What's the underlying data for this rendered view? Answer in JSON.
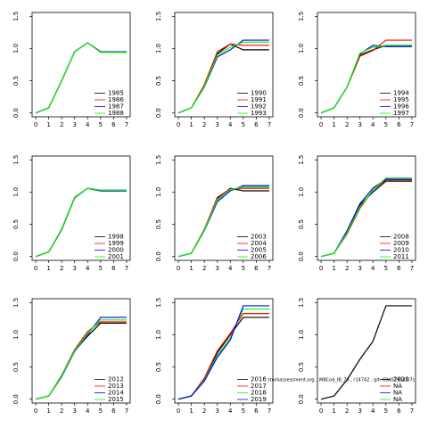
{
  "chart_data": [
    {
      "type": "line",
      "x": [
        0,
        1,
        2,
        3,
        4,
        5,
        6,
        7
      ],
      "xlim": [
        -0.28,
        7.28
      ],
      "xticks": [
        0,
        1,
        2,
        3,
        4,
        5,
        6,
        7
      ],
      "ylim": [
        -0.06,
        1.56
      ],
      "yticks": [
        {
          "value": 0,
          "label": "0.0"
        },
        {
          "value": 0.5,
          "label": "0.5"
        },
        {
          "value": 1,
          "label": "1.0"
        },
        {
          "value": 1.5,
          "label": "1.5"
        }
      ],
      "legend": "bottom-right",
      "series": [
        {
          "name": "1985",
          "color": "#000000",
          "values": [
            0,
            0.08,
            0.5,
            0.95,
            1.09,
            0.95,
            0.95,
            0.95
          ]
        },
        {
          "name": "1986",
          "color": "#ff0000",
          "values": [
            0,
            0.08,
            0.5,
            0.95,
            1.09,
            0.95,
            0.95,
            0.95
          ]
        },
        {
          "name": "1987",
          "color": "#0000ff",
          "values": [
            0,
            0.08,
            0.5,
            0.95,
            1.09,
            0.95,
            0.95,
            0.95
          ]
        },
        {
          "name": "1988",
          "color": "#00ff00",
          "values": [
            0,
            0.08,
            0.5,
            0.95,
            1.09,
            0.94,
            0.94,
            0.94
          ]
        }
      ]
    },
    {
      "type": "line",
      "x": [
        0,
        1,
        2,
        3,
        4,
        5,
        6,
        7
      ],
      "xlim": [
        -0.28,
        7.28
      ],
      "xticks": [
        0,
        1,
        2,
        3,
        4,
        5,
        6,
        7
      ],
      "ylim": [
        -0.06,
        1.56
      ],
      "yticks": [
        {
          "value": 0,
          "label": "0.0"
        },
        {
          "value": 0.5,
          "label": "0.5"
        },
        {
          "value": 1,
          "label": "1.0"
        },
        {
          "value": 1.5,
          "label": "1.5"
        }
      ],
      "legend": "bottom-right",
      "series": [
        {
          "name": "1990",
          "color": "#000000",
          "values": [
            0,
            0.08,
            0.42,
            0.92,
            1.07,
            0.98,
            0.98,
            0.98
          ]
        },
        {
          "name": "1991",
          "color": "#ff0000",
          "values": [
            0,
            0.08,
            0.44,
            0.95,
            1.07,
            1.05,
            1.05,
            1.05
          ]
        },
        {
          "name": "1992",
          "color": "#0000ff",
          "values": [
            0,
            0.08,
            0.4,
            0.87,
            0.98,
            1.13,
            1.13,
            1.13
          ]
        },
        {
          "name": "1993",
          "color": "#00ff00",
          "values": [
            0,
            0.08,
            0.41,
            0.9,
            1.02,
            1.1,
            1.1,
            1.1
          ]
        }
      ]
    },
    {
      "type": "line",
      "x": [
        0,
        1,
        2,
        3,
        4,
        5,
        6,
        7
      ],
      "xlim": [
        -0.28,
        7.28
      ],
      "xticks": [
        0,
        1,
        2,
        3,
        4,
        5,
        6,
        7
      ],
      "ylim": [
        -0.06,
        1.56
      ],
      "yticks": [
        {
          "value": 0,
          "label": "0.0"
        },
        {
          "value": 0.5,
          "label": "0.5"
        },
        {
          "value": 1,
          "label": "1.0"
        },
        {
          "value": 1.5,
          "label": "1.5"
        }
      ],
      "legend": "bottom-right",
      "series": [
        {
          "name": "1994",
          "color": "#000000",
          "values": [
            0,
            0.08,
            0.4,
            0.9,
            0.98,
            1.05,
            1.05,
            1.05
          ]
        },
        {
          "name": "1995",
          "color": "#ff0000",
          "values": [
            0,
            0.08,
            0.4,
            0.88,
            0.97,
            1.13,
            1.13,
            1.13
          ]
        },
        {
          "name": "1996",
          "color": "#0000ff",
          "values": [
            0,
            0.08,
            0.4,
            0.92,
            1.05,
            1.03,
            1.03,
            1.03
          ]
        },
        {
          "name": "1997",
          "color": "#00ff00",
          "values": [
            0,
            0.08,
            0.4,
            0.93,
            1.02,
            1.05,
            1.05,
            1.05
          ]
        }
      ]
    },
    {
      "type": "line",
      "x": [
        0,
        1,
        2,
        3,
        4,
        5,
        6,
        7
      ],
      "xlim": [
        -0.28,
        7.28
      ],
      "xticks": [
        0,
        1,
        2,
        3,
        4,
        5,
        6,
        7
      ],
      "ylim": [
        -0.06,
        1.56
      ],
      "yticks": [
        {
          "value": 0,
          "label": "0.0"
        },
        {
          "value": 0.5,
          "label": "0.5"
        },
        {
          "value": 1,
          "label": "1.0"
        },
        {
          "value": 1.5,
          "label": "1.5"
        }
      ],
      "legend": "bottom-right",
      "series": [
        {
          "name": "1998",
          "color": "#000000",
          "values": [
            0,
            0.07,
            0.42,
            0.92,
            1.06,
            1.02,
            1.02,
            1.02
          ]
        },
        {
          "name": "1999",
          "color": "#ff0000",
          "values": [
            0,
            0.07,
            0.42,
            0.92,
            1.06,
            1.03,
            1.03,
            1.03
          ]
        },
        {
          "name": "2000",
          "color": "#0000ff",
          "values": [
            0,
            0.07,
            0.42,
            0.91,
            1.06,
            1.02,
            1.02,
            1.02
          ]
        },
        {
          "name": "2001",
          "color": "#00ff00",
          "values": [
            0,
            0.07,
            0.43,
            0.92,
            1.06,
            1.03,
            1.03,
            1.03
          ]
        }
      ]
    },
    {
      "type": "line",
      "x": [
        0,
        1,
        2,
        3,
        4,
        5,
        6,
        7
      ],
      "xlim": [
        -0.28,
        7.28
      ],
      "xticks": [
        0,
        1,
        2,
        3,
        4,
        5,
        6,
        7
      ],
      "ylim": [
        -0.06,
        1.56
      ],
      "yticks": [
        {
          "value": 0,
          "label": "0.0"
        },
        {
          "value": 0.5,
          "label": "0.5"
        },
        {
          "value": 1,
          "label": "1.0"
        },
        {
          "value": 1.5,
          "label": "1.5"
        }
      ],
      "legend": "bottom-right",
      "series": [
        {
          "name": "2003",
          "color": "#000000",
          "values": [
            0,
            0.05,
            0.42,
            0.9,
            1.06,
            1.02,
            1.02,
            1.02
          ]
        },
        {
          "name": "2004",
          "color": "#ff0000",
          "values": [
            0,
            0.05,
            0.42,
            0.92,
            1.05,
            1.06,
            1.06,
            1.06
          ]
        },
        {
          "name": "2005",
          "color": "#0000ff",
          "values": [
            0,
            0.05,
            0.4,
            0.85,
            1.02,
            1.1,
            1.1,
            1.1
          ]
        },
        {
          "name": "2006",
          "color": "#00ff00",
          "values": [
            0,
            0.05,
            0.41,
            0.88,
            1.04,
            1.08,
            1.08,
            1.08
          ]
        }
      ]
    },
    {
      "type": "line",
      "x": [
        0,
        1,
        2,
        3,
        4,
        5,
        6,
        7
      ],
      "xlim": [
        -0.28,
        7.28
      ],
      "xticks": [
        0,
        1,
        2,
        3,
        4,
        5,
        6,
        7
      ],
      "ylim": [
        -0.06,
        1.56
      ],
      "yticks": [
        {
          "value": 0,
          "label": "0.0"
        },
        {
          "value": 0.5,
          "label": "0.5"
        },
        {
          "value": 1,
          "label": "1.0"
        },
        {
          "value": 1.5,
          "label": "1.5"
        }
      ],
      "legend": "bottom-right",
      "series": [
        {
          "name": "2008",
          "color": "#000000",
          "values": [
            0,
            0.05,
            0.38,
            0.8,
            1.0,
            1.17,
            1.17,
            1.17
          ]
        },
        {
          "name": "2009",
          "color": "#ff0000",
          "values": [
            0,
            0.05,
            0.35,
            0.75,
            1.03,
            1.19,
            1.19,
            1.19
          ]
        },
        {
          "name": "2010",
          "color": "#0000ff",
          "values": [
            0,
            0.05,
            0.4,
            0.82,
            1.06,
            1.2,
            1.2,
            1.2
          ]
        },
        {
          "name": "2011",
          "color": "#00ff00",
          "values": [
            0,
            0.05,
            0.37,
            0.77,
            1.03,
            1.22,
            1.22,
            1.22
          ]
        }
      ]
    },
    {
      "type": "line",
      "x": [
        0,
        1,
        2,
        3,
        4,
        5,
        6,
        7
      ],
      "xlim": [
        -0.28,
        7.28
      ],
      "xticks": [
        0,
        1,
        2,
        3,
        4,
        5,
        6,
        7
      ],
      "ylim": [
        -0.06,
        1.56
      ],
      "yticks": [
        {
          "value": 0,
          "label": "0.0"
        },
        {
          "value": 0.5,
          "label": "0.5"
        },
        {
          "value": 1,
          "label": "1.0"
        },
        {
          "value": 1.5,
          "label": "1.5"
        }
      ],
      "legend": "bottom-right",
      "series": [
        {
          "name": "2012",
          "color": "#000000",
          "values": [
            0,
            0.05,
            0.35,
            0.75,
            0.98,
            1.18,
            1.18,
            1.18
          ]
        },
        {
          "name": "2013",
          "color": "#ff0000",
          "values": [
            0,
            0.05,
            0.37,
            0.77,
            1.05,
            1.2,
            1.2,
            1.2
          ]
        },
        {
          "name": "2014",
          "color": "#0000ff",
          "values": [
            0,
            0.05,
            0.35,
            0.74,
            1.0,
            1.27,
            1.27,
            1.27
          ]
        },
        {
          "name": "2015",
          "color": "#00ff00",
          "values": [
            0,
            0.05,
            0.36,
            0.75,
            1.02,
            1.23,
            1.23,
            1.23
          ]
        }
      ]
    },
    {
      "type": "line",
      "x": [
        0,
        1,
        2,
        3,
        4,
        5,
        6,
        7
      ],
      "xlim": [
        -0.28,
        7.28
      ],
      "xticks": [
        0,
        1,
        2,
        3,
        4,
        5,
        6,
        7
      ],
      "ylim": [
        -0.06,
        1.56
      ],
      "yticks": [
        {
          "value": 0,
          "label": "0.0"
        },
        {
          "value": 0.5,
          "label": "0.5"
        },
        {
          "value": 1,
          "label": "1.0"
        },
        {
          "value": 1.5,
          "label": "1.5"
        }
      ],
      "legend": "bottom-right",
      "series": [
        {
          "name": "2016",
          "color": "#000000",
          "values": [
            0,
            0.05,
            0.32,
            0.72,
            1.0,
            1.27,
            1.27,
            1.27
          ]
        },
        {
          "name": "2017",
          "color": "#ff0000",
          "values": [
            0,
            0.05,
            0.33,
            0.75,
            1.02,
            1.33,
            1.33,
            1.33
          ]
        },
        {
          "name": "2018",
          "color": "#00ff00",
          "values": [
            0,
            0.05,
            0.3,
            0.68,
            0.95,
            1.4,
            1.4,
            1.4
          ]
        },
        {
          "name": "2019",
          "color": "#0000ff",
          "values": [
            0,
            0.05,
            0.28,
            0.65,
            0.92,
            1.45,
            1.45,
            1.45
          ]
        }
      ]
    },
    {
      "type": "line",
      "x": [
        0,
        1,
        2,
        3,
        4,
        5,
        6,
        7
      ],
      "xlim": [
        -0.28,
        7.28
      ],
      "xticks": [
        0,
        1,
        2,
        3,
        4,
        5,
        6,
        7
      ],
      "ylim": [
        -0.06,
        1.56
      ],
      "yticks": [
        {
          "value": 0,
          "label": "0.0"
        },
        {
          "value": 0.5,
          "label": "0.5"
        },
        {
          "value": 1,
          "label": "1.0"
        },
        {
          "value": 1.5,
          "label": "1.5"
        }
      ],
      "legend": "bottom-right",
      "series": [
        {
          "name": "2021",
          "color": "#000000",
          "values": [
            0,
            0.05,
            0.3,
            0.62,
            0.9,
            1.45,
            1.45,
            1.45
          ]
        },
        {
          "name": "NA",
          "color": "#ff0000",
          "values": [
            null,
            null,
            null,
            null,
            null,
            null,
            null,
            null
          ]
        },
        {
          "name": "NA",
          "color": "#0000ff",
          "values": [
            null,
            null,
            null,
            null,
            null,
            null,
            null,
            null
          ]
        },
        {
          "name": "NA",
          "color": "#00ff00",
          "values": [
            null,
            null,
            null,
            null,
            null,
            null,
            null,
            null
          ]
        }
      ]
    }
  ],
  "watermark": "stockassessment.org , WBCod_IB_76 , r14742 , git: 69d02904f37c"
}
